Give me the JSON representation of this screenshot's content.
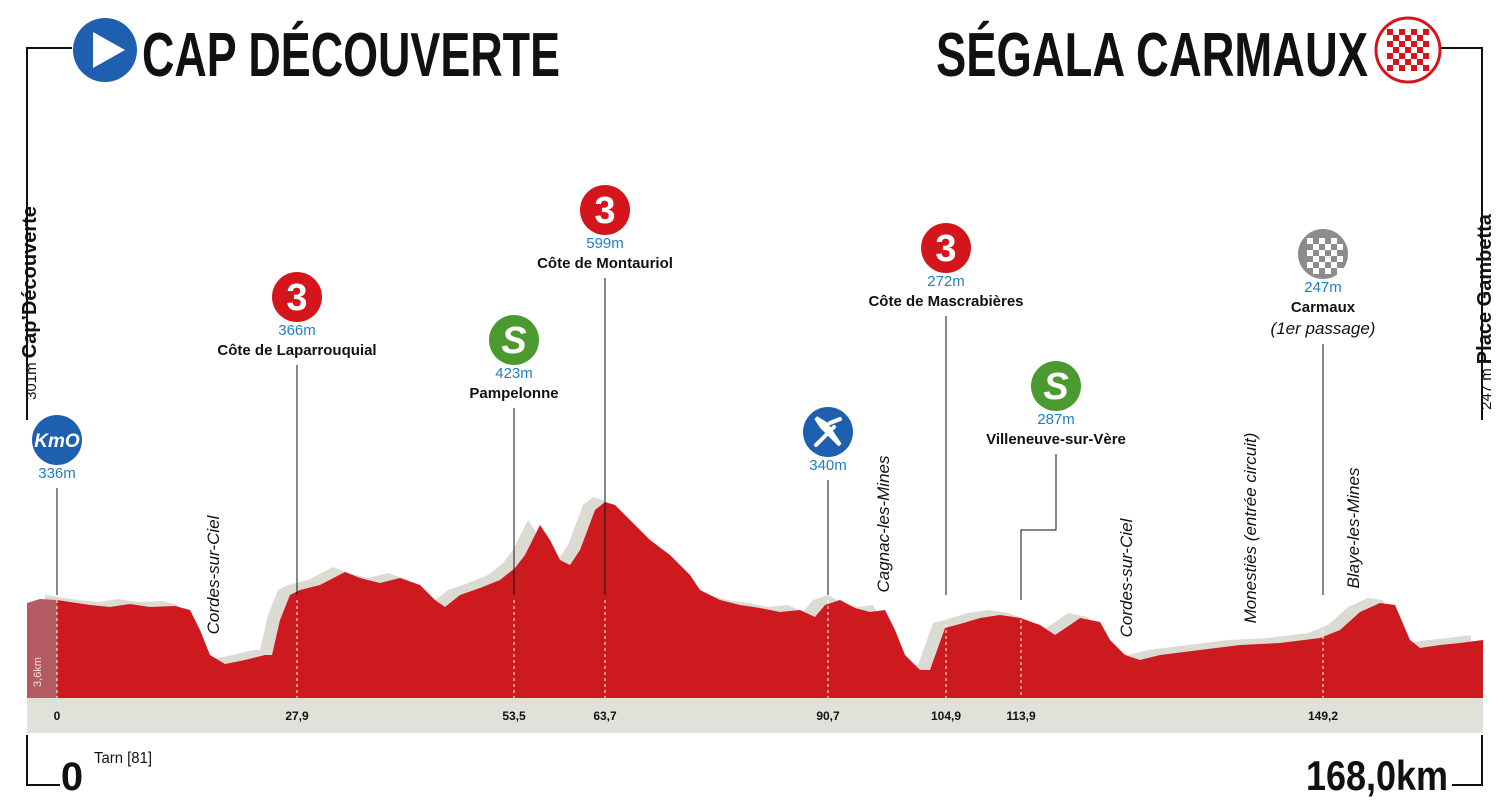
{
  "header": {
    "start": "CAP DÉCOUVERTE",
    "finish": "SÉGALA CARMAUX"
  },
  "start_label": {
    "altitude": "301m",
    "place": "Cap’Découverte"
  },
  "finish_label": {
    "altitude": "247 m",
    "place": "Place Gambetta"
  },
  "neutral": "3,6km",
  "markers": [
    {
      "icon": "KmO",
      "altitude": "336m",
      "km": "0"
    },
    {
      "icon": "3",
      "altitude": "366m",
      "name": "Côte de Laparrouquial",
      "km": "27,9"
    },
    {
      "icon": "S",
      "altitude": "423m",
      "name": "Pampelonne",
      "km": "53,5"
    },
    {
      "icon": "3",
      "altitude": "599m",
      "name": "Côte de Montauriol",
      "km": "63,7"
    },
    {
      "altitude": "340m",
      "km": "90,7"
    },
    {
      "icon": "3",
      "altitude": "272m",
      "name": "Côte de Mascrabières",
      "km": "104,9"
    },
    {
      "icon": "S",
      "altitude": "287m",
      "name": "Villeneuve-sur-Vère",
      "km": "113,9"
    },
    {
      "altitude": "247m",
      "name": "Carmaux",
      "note": "(1er passage)",
      "km": "149,2"
    }
  ],
  "towns": [
    "Cordes-sur-Ciel",
    "Cagnac-les-Mines",
    "Cordes-sur-Ciel",
    "Monestiès (entrée circuit)",
    "Blaye-les-Mines"
  ],
  "footer": {
    "start_km": "0",
    "department": "Tarn [81]",
    "distance": "168,0km"
  }
}
